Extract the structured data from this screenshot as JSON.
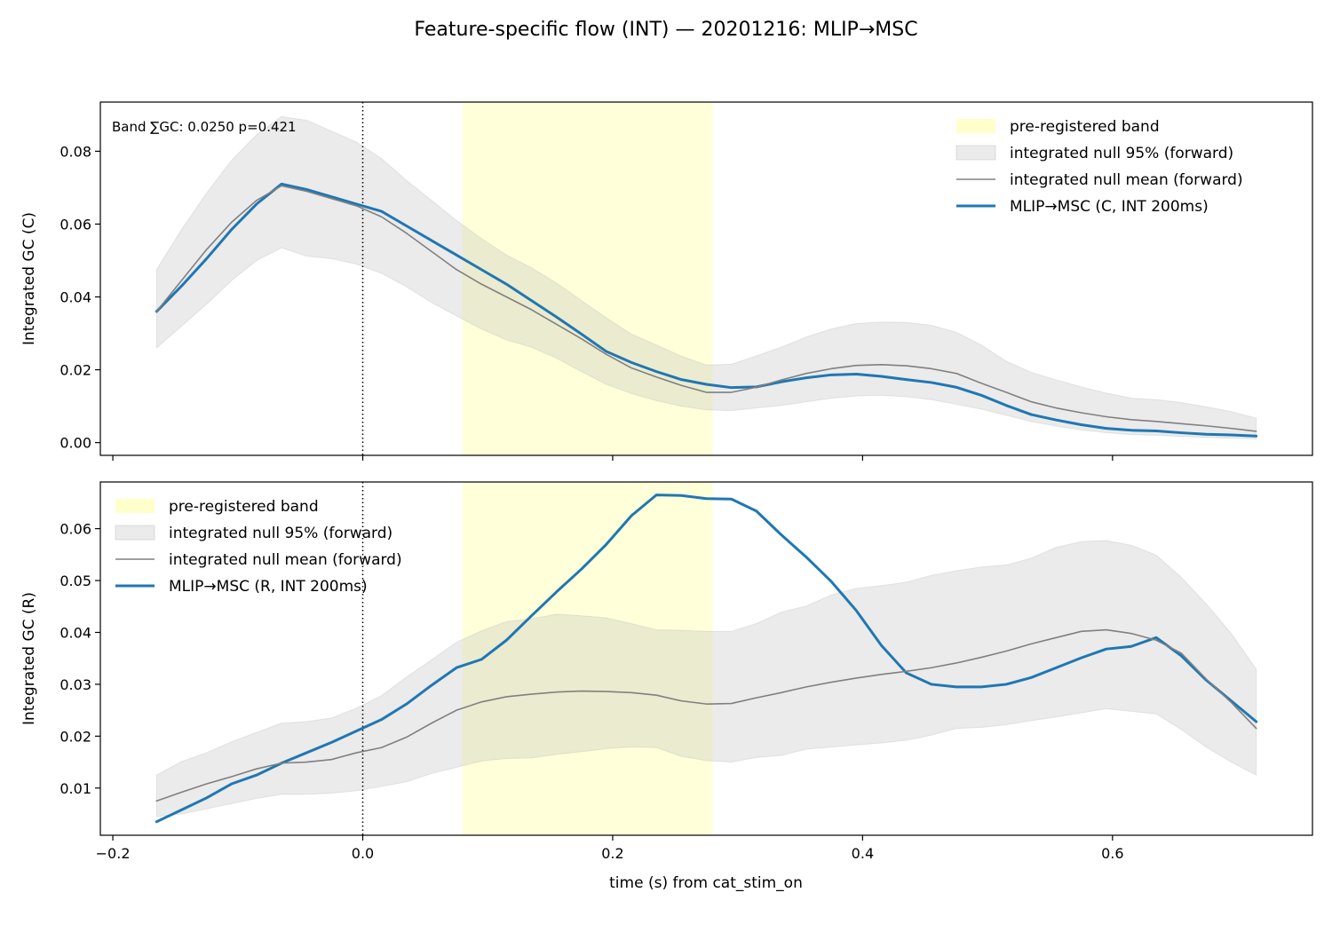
{
  "figure": {
    "title": "Feature-specific flow (INT) — 20201216: MLIP→MSC",
    "xlabel": "time (s) from cat_stim_on"
  },
  "colors": {
    "band": "#ffffcc",
    "null_fill": "#bdbdbd",
    "null_mean": "#808080",
    "observed": "#1f77b4"
  },
  "chart_data": [
    {
      "type": "line",
      "id": "top",
      "ylabel": "Integrated GC (C)",
      "xlim": [
        -0.21,
        0.76
      ],
      "ylim": [
        -0.0035,
        0.0935
      ],
      "xticks": [
        -0.2,
        0.0,
        0.2,
        0.4,
        0.6
      ],
      "xtick_labels": [],
      "yticks": [
        0.0,
        0.02,
        0.04,
        0.06,
        0.08
      ],
      "ytick_labels": [
        "0.00",
        "0.02",
        "0.04",
        "0.06",
        "0.08"
      ],
      "band": [
        0.08,
        0.28
      ],
      "vline_x": 0.0,
      "annotation": "Band ∑GC: 0.0250  p=0.421",
      "legend_position": "upper right",
      "legend": [
        {
          "kind": "band",
          "label": "pre-registered band"
        },
        {
          "kind": "null_fill",
          "label": "integrated null 95% (forward)"
        },
        {
          "kind": "null_mean",
          "label": "integrated null mean (forward)"
        },
        {
          "kind": "observed",
          "label": "MLIP→MSC (C, INT 200ms)"
        }
      ],
      "x": [
        -0.165,
        -0.145,
        -0.125,
        -0.105,
        -0.085,
        -0.065,
        -0.045,
        -0.025,
        -0.005,
        0.015,
        0.035,
        0.055,
        0.075,
        0.095,
        0.115,
        0.135,
        0.155,
        0.175,
        0.195,
        0.215,
        0.235,
        0.255,
        0.275,
        0.295,
        0.315,
        0.335,
        0.355,
        0.375,
        0.395,
        0.415,
        0.435,
        0.455,
        0.475,
        0.495,
        0.515,
        0.535,
        0.555,
        0.575,
        0.595,
        0.615,
        0.635,
        0.655,
        0.675,
        0.695,
        0.715
      ],
      "series": [
        {
          "name": "MLIP→MSC (C, INT 200ms)",
          "role": "observed",
          "values": [
            0.036,
            0.043,
            0.0505,
            0.0585,
            0.0655,
            0.071,
            0.0695,
            0.0675,
            0.0655,
            0.0635,
            0.0595,
            0.0555,
            0.0515,
            0.0475,
            0.0435,
            0.039,
            0.0345,
            0.0298,
            0.025,
            0.022,
            0.0195,
            0.0173,
            0.016,
            0.0151,
            0.0153,
            0.0167,
            0.0178,
            0.0186,
            0.0188,
            0.0182,
            0.0173,
            0.0165,
            0.0152,
            0.013,
            0.0102,
            0.0077,
            0.0062,
            0.0049,
            0.0039,
            0.0034,
            0.0032,
            0.0027,
            0.0023,
            0.0021,
            0.0018
          ]
        },
        {
          "name": "integrated null mean (forward)",
          "role": "null_mean",
          "values": [
            0.036,
            0.0445,
            0.053,
            0.0605,
            0.0665,
            0.0705,
            0.069,
            0.067,
            0.065,
            0.062,
            0.0575,
            0.0525,
            0.0475,
            0.0435,
            0.04,
            0.0365,
            0.0325,
            0.0285,
            0.0242,
            0.0205,
            0.018,
            0.0157,
            0.0138,
            0.0138,
            0.0152,
            0.0172,
            0.019,
            0.0203,
            0.0212,
            0.0214,
            0.0211,
            0.0203,
            0.019,
            0.0163,
            0.0138,
            0.0112,
            0.0095,
            0.0082,
            0.0071,
            0.0063,
            0.0058,
            0.0052,
            0.0046,
            0.0039,
            0.0031
          ]
        }
      ],
      "null_band": {
        "lower": [
          0.026,
          0.032,
          0.038,
          0.0445,
          0.05,
          0.0535,
          0.0512,
          0.0505,
          0.049,
          0.0465,
          0.0428,
          0.0385,
          0.0348,
          0.0312,
          0.0282,
          0.0262,
          0.0232,
          0.0195,
          0.016,
          0.0135,
          0.0115,
          0.01,
          0.009,
          0.0088,
          0.0095,
          0.0102,
          0.0112,
          0.0122,
          0.0128,
          0.013,
          0.0126,
          0.0118,
          0.0105,
          0.0092,
          0.0075,
          0.0058,
          0.0045,
          0.0035,
          0.0027,
          0.0022,
          0.002,
          0.0017,
          0.0014,
          0.0012,
          0.001
        ],
        "upper": [
          0.0475,
          0.0585,
          0.0685,
          0.0775,
          0.0845,
          0.0895,
          0.0885,
          0.0855,
          0.0825,
          0.078,
          0.072,
          0.0665,
          0.061,
          0.056,
          0.0515,
          0.048,
          0.0438,
          0.039,
          0.0342,
          0.0298,
          0.0268,
          0.0237,
          0.0213,
          0.0215,
          0.0238,
          0.0262,
          0.029,
          0.0312,
          0.0327,
          0.0331,
          0.033,
          0.0322,
          0.0303,
          0.0268,
          0.0223,
          0.0193,
          0.0172,
          0.0153,
          0.0136,
          0.0122,
          0.0118,
          0.011,
          0.0098,
          0.0085,
          0.0067
        ]
      }
    },
    {
      "type": "line",
      "id": "bottom",
      "ylabel": "Integrated GC (R)",
      "xlim": [
        -0.21,
        0.76
      ],
      "ylim": [
        0.0009,
        0.069
      ],
      "xticks": [
        -0.2,
        0.0,
        0.2,
        0.4,
        0.6
      ],
      "xtick_labels": [
        "−0.2",
        "0.0",
        "0.2",
        "0.4",
        "0.6"
      ],
      "yticks": [
        0.01,
        0.02,
        0.03,
        0.04,
        0.05,
        0.06
      ],
      "ytick_labels": [
        "0.01",
        "0.02",
        "0.03",
        "0.04",
        "0.05",
        "0.06"
      ],
      "band": [
        0.08,
        0.28
      ],
      "vline_x": 0.0,
      "annotation": "",
      "legend_position": "upper left",
      "legend": [
        {
          "kind": "band",
          "label": "pre-registered band"
        },
        {
          "kind": "null_fill",
          "label": "integrated null 95% (forward)"
        },
        {
          "kind": "null_mean",
          "label": "integrated null mean (forward)"
        },
        {
          "kind": "observed",
          "label": "MLIP→MSC (R, INT 200ms)"
        }
      ],
      "x": [
        -0.165,
        -0.145,
        -0.125,
        -0.105,
        -0.085,
        -0.065,
        -0.045,
        -0.025,
        -0.005,
        0.015,
        0.035,
        0.055,
        0.075,
        0.095,
        0.115,
        0.135,
        0.155,
        0.175,
        0.195,
        0.215,
        0.235,
        0.255,
        0.275,
        0.295,
        0.315,
        0.335,
        0.355,
        0.375,
        0.395,
        0.415,
        0.435,
        0.455,
        0.475,
        0.495,
        0.515,
        0.535,
        0.555,
        0.575,
        0.595,
        0.615,
        0.635,
        0.655,
        0.675,
        0.695,
        0.715
      ],
      "series": [
        {
          "name": "MLIP→MSC (R, INT 200ms)",
          "role": "observed",
          "values": [
            0.0035,
            0.0058,
            0.0081,
            0.0108,
            0.0125,
            0.0148,
            0.0168,
            0.0188,
            0.021,
            0.0232,
            0.0262,
            0.0298,
            0.0332,
            0.0348,
            0.0385,
            0.0432,
            0.0478,
            0.0522,
            0.057,
            0.0625,
            0.0665,
            0.0664,
            0.0658,
            0.0657,
            0.0634,
            0.0588,
            0.0545,
            0.0498,
            0.0442,
            0.0375,
            0.0322,
            0.03,
            0.0295,
            0.0295,
            0.03,
            0.0313,
            0.0332,
            0.0351,
            0.0368,
            0.0373,
            0.039,
            0.0355,
            0.0308,
            0.0268,
            0.0228
          ]
        },
        {
          "name": "integrated null mean (forward)",
          "role": "null_mean",
          "values": [
            0.0075,
            0.0092,
            0.0108,
            0.0122,
            0.0137,
            0.0148,
            0.015,
            0.0155,
            0.0168,
            0.0178,
            0.0198,
            0.0225,
            0.025,
            0.0266,
            0.0276,
            0.0281,
            0.0285,
            0.0287,
            0.0286,
            0.0284,
            0.0279,
            0.0268,
            0.0262,
            0.0263,
            0.0274,
            0.0284,
            0.0295,
            0.0304,
            0.0312,
            0.0319,
            0.0325,
            0.0332,
            0.0341,
            0.0352,
            0.0364,
            0.0378,
            0.039,
            0.0402,
            0.0405,
            0.0398,
            0.0385,
            0.036,
            0.031,
            0.0265,
            0.0215
          ]
        }
      ],
      "null_band": {
        "lower": [
          0.0045,
          0.005,
          0.006,
          0.007,
          0.008,
          0.0088,
          0.0088,
          0.009,
          0.0095,
          0.0103,
          0.0112,
          0.0128,
          0.014,
          0.0152,
          0.0157,
          0.0158,
          0.0165,
          0.017,
          0.0176,
          0.0179,
          0.0178,
          0.0161,
          0.0153,
          0.015,
          0.0159,
          0.0163,
          0.0175,
          0.0179,
          0.0183,
          0.0187,
          0.0192,
          0.0202,
          0.0215,
          0.0217,
          0.0222,
          0.023,
          0.0237,
          0.0245,
          0.0253,
          0.0248,
          0.0243,
          0.0213,
          0.0179,
          0.015,
          0.0125
        ],
        "upper": [
          0.0125,
          0.0151,
          0.0168,
          0.0189,
          0.0207,
          0.0225,
          0.0228,
          0.0235,
          0.0254,
          0.0278,
          0.0314,
          0.0347,
          0.0381,
          0.0403,
          0.0421,
          0.0426,
          0.0435,
          0.0432,
          0.0428,
          0.0417,
          0.0405,
          0.0404,
          0.0402,
          0.0402,
          0.0417,
          0.0439,
          0.0451,
          0.0472,
          0.0485,
          0.049,
          0.0497,
          0.051,
          0.0519,
          0.0526,
          0.053,
          0.0543,
          0.0564,
          0.0575,
          0.0577,
          0.0568,
          0.0549,
          0.0506,
          0.0455,
          0.0398,
          0.0329
        ]
      }
    }
  ]
}
